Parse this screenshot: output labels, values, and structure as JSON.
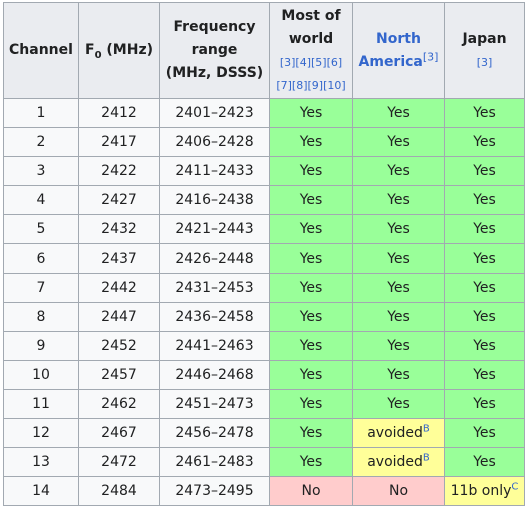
{
  "headers": {
    "channel": "Channel",
    "f0_main": "F",
    "f0_sub": "0",
    "f0_unit": " (MHz)",
    "freq_line1": "Frequency",
    "freq_line2": "range",
    "freq_line3": "(MHz, DSSS)",
    "world_line1": "Most of",
    "world_line2": "world",
    "world_refs1": "[3][4][5][6]",
    "world_refs2": "[7][8][9][10]",
    "na_line1": "North",
    "na_line2": "America",
    "na_ref": "[3]",
    "japan_line1": "Japan",
    "japan_ref": "[3]"
  },
  "rows": [
    {
      "channel": "1",
      "f0": "2412",
      "range": "2401–2423",
      "world": "Yes",
      "na": "Yes",
      "japan": "Yes"
    },
    {
      "channel": "2",
      "f0": "2417",
      "range": "2406–2428",
      "world": "Yes",
      "na": "Yes",
      "japan": "Yes"
    },
    {
      "channel": "3",
      "f0": "2422",
      "range": "2411–2433",
      "world": "Yes",
      "na": "Yes",
      "japan": "Yes"
    },
    {
      "channel": "4",
      "f0": "2427",
      "range": "2416–2438",
      "world": "Yes",
      "na": "Yes",
      "japan": "Yes"
    },
    {
      "channel": "5",
      "f0": "2432",
      "range": "2421–2443",
      "world": "Yes",
      "na": "Yes",
      "japan": "Yes"
    },
    {
      "channel": "6",
      "f0": "2437",
      "range": "2426–2448",
      "world": "Yes",
      "na": "Yes",
      "japan": "Yes"
    },
    {
      "channel": "7",
      "f0": "2442",
      "range": "2431–2453",
      "world": "Yes",
      "na": "Yes",
      "japan": "Yes"
    },
    {
      "channel": "8",
      "f0": "2447",
      "range": "2436–2458",
      "world": "Yes",
      "na": "Yes",
      "japan": "Yes"
    },
    {
      "channel": "9",
      "f0": "2452",
      "range": "2441–2463",
      "world": "Yes",
      "na": "Yes",
      "japan": "Yes"
    },
    {
      "channel": "10",
      "f0": "2457",
      "range": "2446–2468",
      "world": "Yes",
      "na": "Yes",
      "japan": "Yes"
    },
    {
      "channel": "11",
      "f0": "2462",
      "range": "2451–2473",
      "world": "Yes",
      "na": "Yes",
      "japan": "Yes"
    },
    {
      "channel": "12",
      "f0": "2467",
      "range": "2456–2478",
      "world": "Yes",
      "na": "avoided",
      "na_note": "B",
      "japan": "Yes"
    },
    {
      "channel": "13",
      "f0": "2472",
      "range": "2461–2483",
      "world": "Yes",
      "na": "avoided",
      "na_note": "B",
      "japan": "Yes"
    },
    {
      "channel": "14",
      "f0": "2484",
      "range": "2473–2495",
      "world": "No",
      "na": "No",
      "japan": "11b only",
      "japan_note": "C"
    }
  ],
  "colors": {
    "yes": "#99ff99",
    "no": "#ffcccc",
    "partial": "#ffff99",
    "header": "#eaecf0",
    "link": "#3366cc"
  }
}
